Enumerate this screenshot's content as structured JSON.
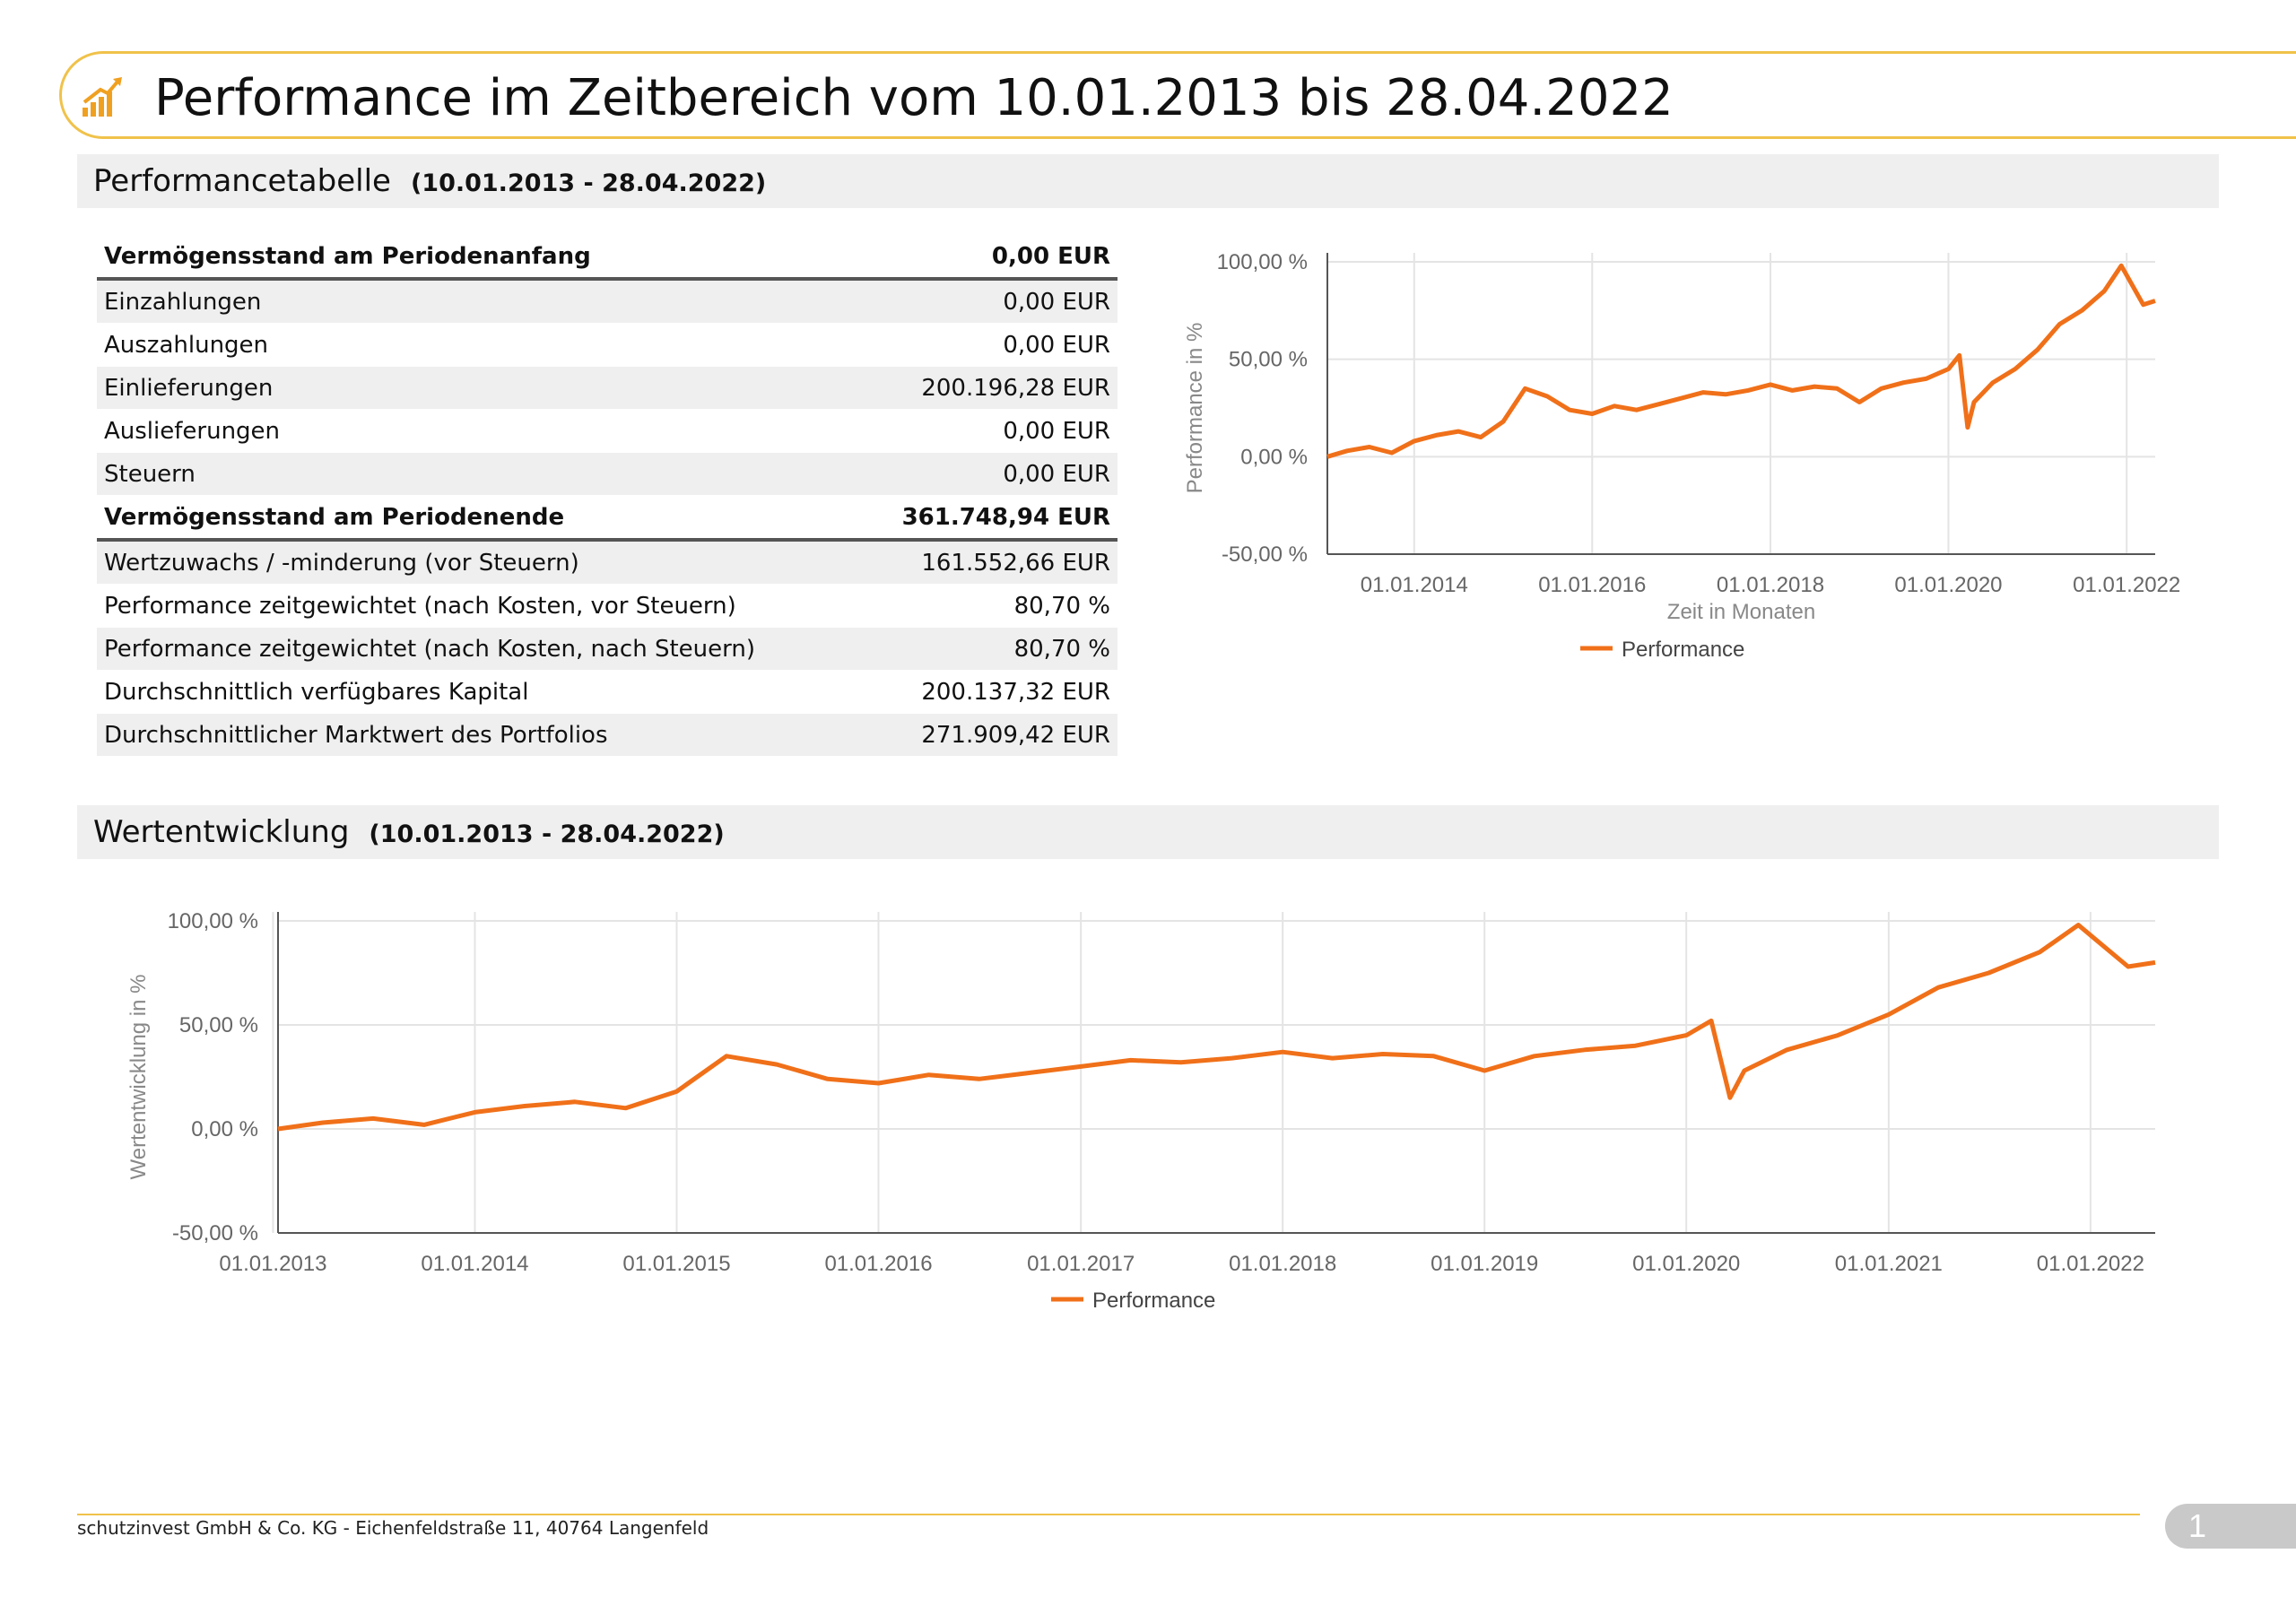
{
  "header": {
    "title": "Performance im Zeitbereich vom 10.01.2013 bis 28.04.2022",
    "icon": "chart-growth-icon",
    "accent_color": "#f0c24a"
  },
  "section_table": {
    "title": "Performancetabelle",
    "range": "(10.01.2013 - 28.04.2022)"
  },
  "table": {
    "rows": [
      {
        "label": "Vermögensstand am Periodenanfang",
        "value": "0,00 EUR"
      },
      {
        "label": "Einzahlungen",
        "value": "0,00 EUR"
      },
      {
        "label": "Auszahlungen",
        "value": "0,00 EUR"
      },
      {
        "label": "Einlieferungen",
        "value": "200.196,28 EUR"
      },
      {
        "label": "Auslieferungen",
        "value": "0,00 EUR"
      },
      {
        "label": "Steuern",
        "value": "0,00 EUR"
      },
      {
        "label": "Vermögensstand am Periodenende",
        "value": "361.748,94 EUR"
      },
      {
        "label": "Wertzuwachs / -minderung (vor Steuern)",
        "value": "161.552,66 EUR"
      },
      {
        "label": "Performance zeitgewichtet (nach Kosten, vor Steuern)",
        "value": "80,70 %"
      },
      {
        "label": "Performance zeitgewichtet (nach Kosten, nach Steuern)",
        "value": "80,70 %"
      },
      {
        "label": "Durchschnittlich verfügbares Kapital",
        "value": "200.137,32 EUR"
      },
      {
        "label": "Durchschnittlicher Marktwert des Portfolios",
        "value": "271.909,42 EUR"
      }
    ]
  },
  "section_chart": {
    "title": "Wertentwicklung",
    "range": "(10.01.2013 - 28.04.2022)"
  },
  "chart_data": [
    {
      "type": "line",
      "ylabel": "Performance in %",
      "xlabel": "Zeit in Monaten",
      "y_ticks": [
        "100,00 %",
        "50,00 %",
        "0,00 %",
        "-50,00 %"
      ],
      "ylim": [
        -50,
        100
      ],
      "x_ticks": [
        "01.01.2014",
        "01.01.2016",
        "01.01.2018",
        "01.01.2020",
        "01.01.2022"
      ],
      "xlim": [
        "10.01.2013",
        "28.04.2022"
      ],
      "legend": "bottom",
      "grid": true,
      "series": [
        {
          "name": "Performance",
          "color": "#f07019",
          "x": [
            "2013-01-10",
            "2013-04-01",
            "2013-07-01",
            "2013-10-01",
            "2014-01-01",
            "2014-04-01",
            "2014-07-01",
            "2014-10-01",
            "2015-01-01",
            "2015-04-01",
            "2015-07-01",
            "2015-10-01",
            "2016-01-01",
            "2016-04-01",
            "2016-07-01",
            "2016-10-01",
            "2017-01-01",
            "2017-04-01",
            "2017-07-01",
            "2017-10-01",
            "2018-01-01",
            "2018-04-01",
            "2018-07-01",
            "2018-10-01",
            "2019-01-01",
            "2019-04-01",
            "2019-07-01",
            "2019-10-01",
            "2020-01-01",
            "2020-02-15",
            "2020-03-20",
            "2020-04-15",
            "2020-07-01",
            "2020-10-01",
            "2021-01-01",
            "2021-04-01",
            "2021-07-01",
            "2021-10-01",
            "2021-12-10",
            "2022-01-15",
            "2022-03-10",
            "2022-04-28"
          ],
          "values": [
            0,
            3,
            5,
            2,
            8,
            11,
            13,
            10,
            18,
            35,
            31,
            24,
            22,
            26,
            24,
            27,
            30,
            33,
            32,
            34,
            37,
            34,
            36,
            35,
            28,
            35,
            38,
            40,
            45,
            52,
            15,
            28,
            38,
            45,
            55,
            68,
            75,
            85,
            98,
            90,
            78,
            80
          ]
        }
      ]
    },
    {
      "type": "line",
      "ylabel": "Wertentwicklung in %",
      "xlabel": "",
      "y_ticks": [
        "100,00 %",
        "50,00 %",
        "0,00 %",
        "-50,00 %"
      ],
      "ylim": [
        -50,
        100
      ],
      "x_ticks": [
        "01.01.2013",
        "01.01.2014",
        "01.01.2015",
        "01.01.2016",
        "01.01.2017",
        "01.01.2018",
        "01.01.2019",
        "01.01.2020",
        "01.01.2021",
        "01.01.2022"
      ],
      "xlim": [
        "10.01.2013",
        "28.04.2022"
      ],
      "legend": "bottom",
      "grid": true,
      "series": [
        {
          "name": "Performance",
          "color": "#f07019",
          "x": [
            "2013-01-10",
            "2013-04-01",
            "2013-07-01",
            "2013-10-01",
            "2014-01-01",
            "2014-04-01",
            "2014-07-01",
            "2014-10-01",
            "2015-01-01",
            "2015-04-01",
            "2015-07-01",
            "2015-10-01",
            "2016-01-01",
            "2016-04-01",
            "2016-07-01",
            "2016-10-01",
            "2017-01-01",
            "2017-04-01",
            "2017-07-01",
            "2017-10-01",
            "2018-01-01",
            "2018-04-01",
            "2018-07-01",
            "2018-10-01",
            "2019-01-01",
            "2019-04-01",
            "2019-07-01",
            "2019-10-01",
            "2020-01-01",
            "2020-02-15",
            "2020-03-20",
            "2020-04-15",
            "2020-07-01",
            "2020-10-01",
            "2021-01-01",
            "2021-04-01",
            "2021-07-01",
            "2021-10-01",
            "2021-12-10",
            "2022-01-15",
            "2022-03-10",
            "2022-04-28"
          ],
          "values": [
            0,
            3,
            5,
            2,
            8,
            11,
            13,
            10,
            18,
            35,
            31,
            24,
            22,
            26,
            24,
            27,
            30,
            33,
            32,
            34,
            37,
            34,
            36,
            35,
            28,
            35,
            38,
            40,
            45,
            52,
            15,
            28,
            38,
            45,
            55,
            68,
            75,
            85,
            98,
            90,
            78,
            80
          ]
        }
      ]
    }
  ],
  "footer": {
    "address": "schutzinvest GmbH & Co. KG - Eichenfeldstraße 11, 40764 Langenfeld",
    "page_number": "1"
  }
}
